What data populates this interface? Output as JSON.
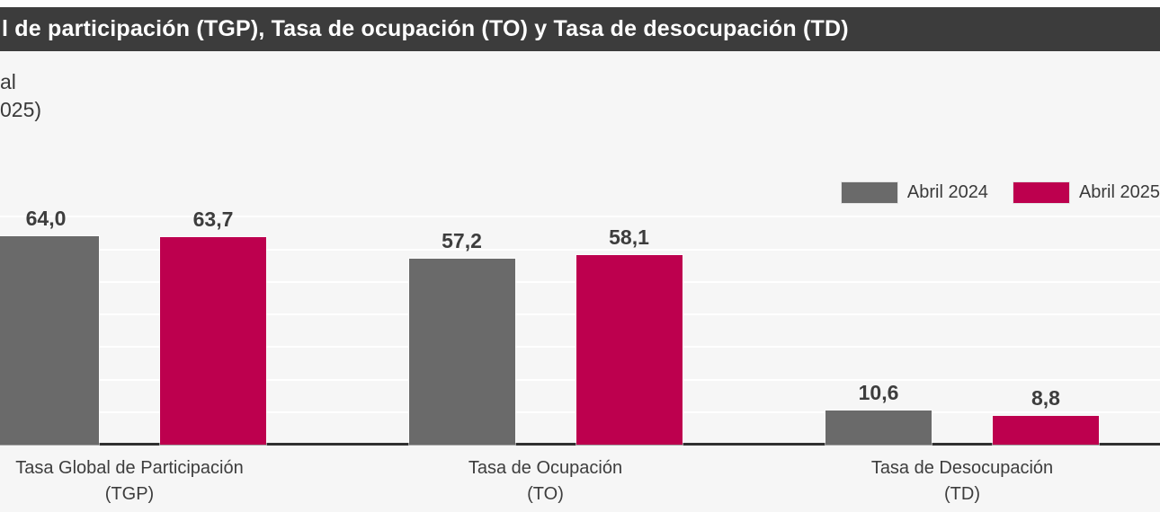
{
  "header": {
    "title": "l de participación (TGP), Tasa de ocupación (TO) y Tasa de desocupación (TD)",
    "subtitle_line1": "al",
    "subtitle_line2": "025)"
  },
  "legend": {
    "items": [
      {
        "label": "Abril 2024",
        "color": "#6a6a6a"
      },
      {
        "label": "Abril 2025",
        "color": "#bd004e"
      }
    ]
  },
  "chart_data": {
    "type": "bar",
    "categories": [
      "Tasa Global de Participación (TGP)",
      "Tasa de Ocupación (TO)",
      "Tasa de Desocupación (TD)"
    ],
    "category_label_lines": [
      [
        "Tasa Global de Participación",
        "(TGP)"
      ],
      [
        "Tasa de Ocupación",
        "(TO)"
      ],
      [
        "Tasa de Desocupación",
        "(TD)"
      ]
    ],
    "series": [
      {
        "name": "Abril 2024",
        "color": "#6a6a6a",
        "values": [
          64.0,
          57.2,
          10.6
        ],
        "value_labels": [
          "64,0",
          "57,2",
          "10,6"
        ]
      },
      {
        "name": "Abril 2025",
        "color": "#bd004e",
        "values": [
          63.7,
          58.1,
          8.8
        ],
        "value_labels": [
          "63,7",
          "58,1",
          "8,8"
        ]
      }
    ],
    "title": "l de participación (TGP), Tasa de ocupación (TO) y Tasa de desocupación (TD)",
    "xlabel": "",
    "ylabel": "",
    "ylim": [
      0,
      75
    ],
    "grid": {
      "visible": true,
      "step": 10,
      "max_line": 70
    },
    "legend_position": "top-right",
    "decimal_separator": ","
  },
  "colors": {
    "title_bar_bg": "#3c3c3c",
    "title_text": "#ffffff",
    "background": "#f6f6f6",
    "gridline": "#ffffff",
    "axis_line": "#303030",
    "series_abril_2024": "#6a6a6a",
    "series_abril_2025": "#bd004e",
    "label_text": "#3d3d3d"
  }
}
